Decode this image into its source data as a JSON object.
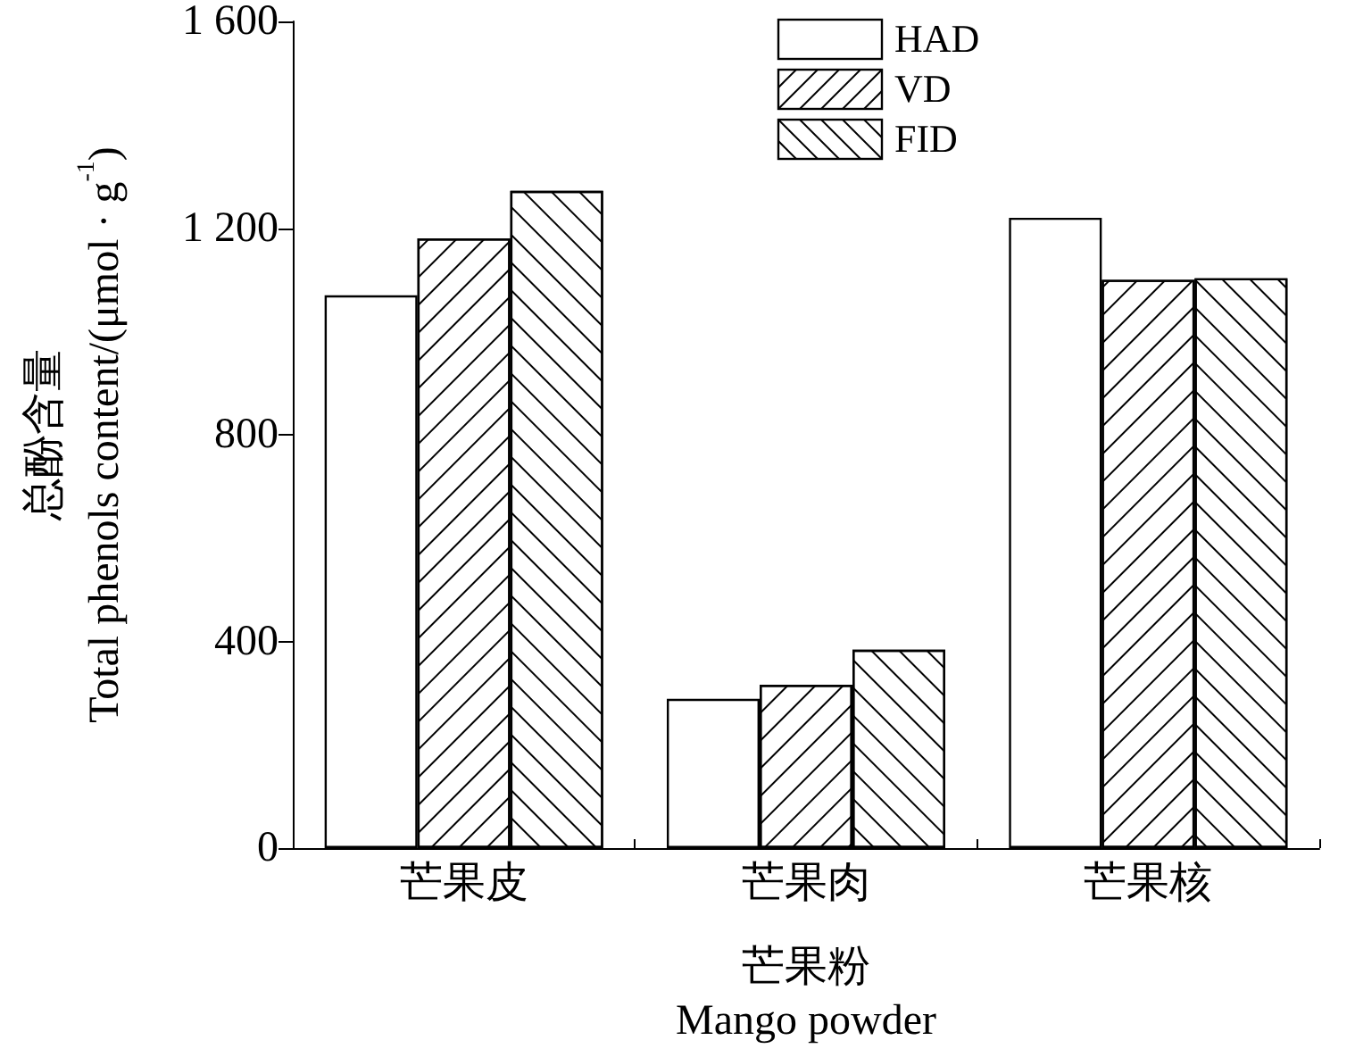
{
  "chart_data": {
    "type": "bar",
    "categories": [
      "芒果皮",
      "芒果肉",
      "芒果核"
    ],
    "xlabel": "芒果粉\nMango powder",
    "ylabel": "总酚含量\nTotal phenols content/(μmol · g$^{-1}$)",
    "series": [
      {
        "name": "HAD",
        "color": "#ffffff",
        "values": [
          1070,
          289,
          1220
        ]
      },
      {
        "name": "VD",
        "color": "#ffffff",
        "values": [
          1180,
          316,
          1100
        ]
      },
      {
        "name": "FID",
        "color": "#ffffff",
        "values": [
          1272,
          384,
          1103
        ]
      }
    ],
    "ylim": [
      0,
      1600
    ],
    "yticks": [
      0,
      400,
      800,
      {
        "value": 1200,
        "label": "1 200"
      },
      {
        "value": 1600,
        "label": "1 600"
      }
    ],
    "grid": false,
    "legend": "top"
  }
}
